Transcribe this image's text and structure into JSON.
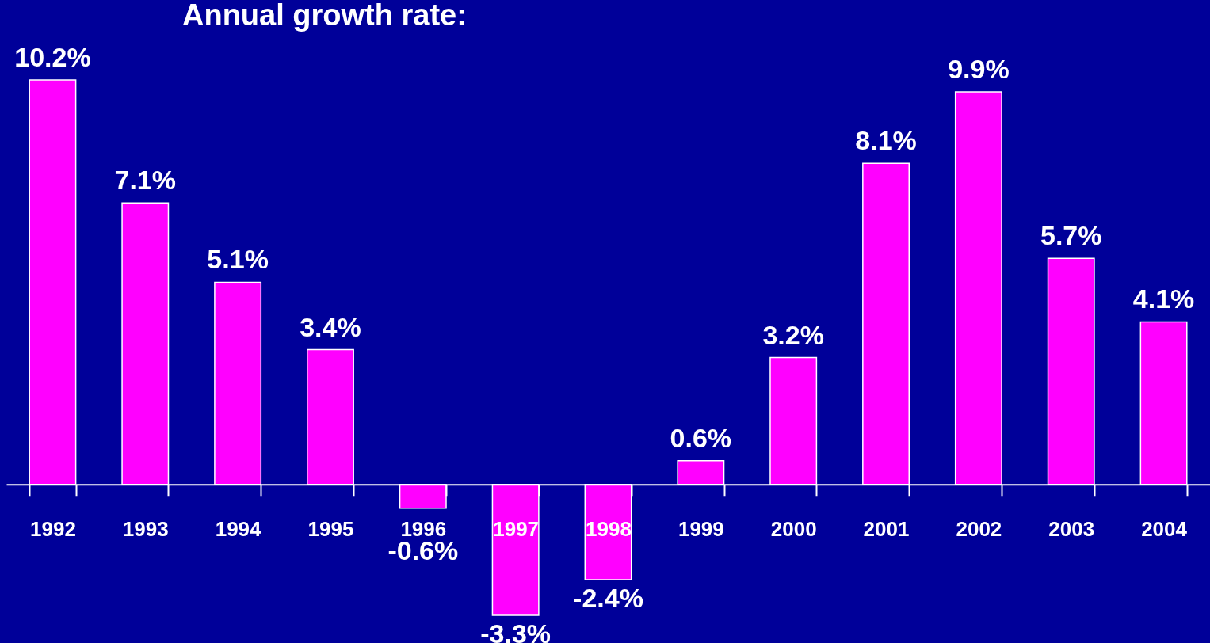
{
  "chart_data": {
    "type": "bar",
    "title": "Annual growth rate:",
    "categories": [
      "1992",
      "1993",
      "1994",
      "1995",
      "1996",
      "1997",
      "1998",
      "1999",
      "2000",
      "2001",
      "2002",
      "2003",
      "2004"
    ],
    "values": [
      10.2,
      7.1,
      5.1,
      3.4,
      -0.6,
      -3.3,
      -2.4,
      0.6,
      3.2,
      8.1,
      9.9,
      5.7,
      4.1
    ],
    "value_labels": [
      "10.2%",
      "7.1%",
      "5.1%",
      "3.4%",
      "-0.6%",
      "-3.3%",
      "-2.4%",
      "0.6%",
      "3.2%",
      "8.1%",
      "9.9%",
      "5.7%",
      "4.1%"
    ],
    "color": "#ff00ff",
    "grid": false
  }
}
